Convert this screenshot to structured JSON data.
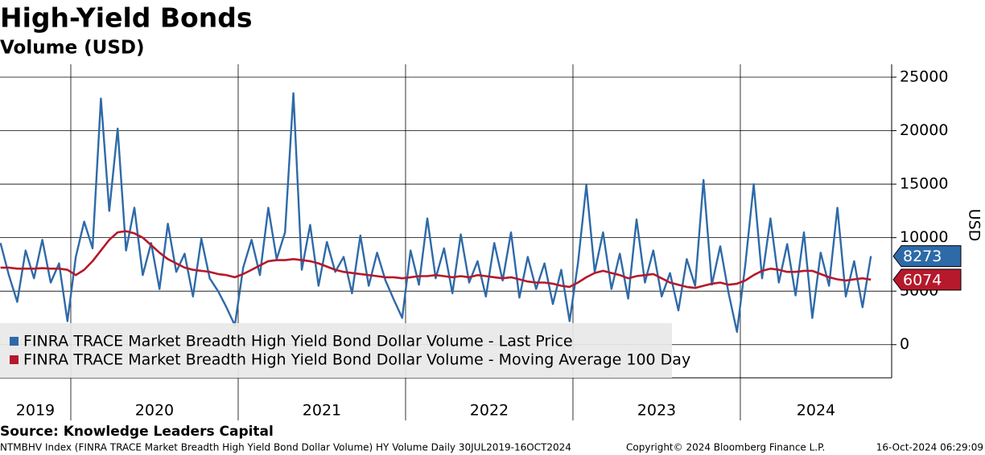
{
  "chart_data": {
    "type": "line",
    "title": "High-Yield Bonds",
    "subtitle": "Volume (USD)",
    "y_label": "USD",
    "source": "Source: Knowledge Leaders Capital",
    "footer_left": "NTMBHV Index (FINRA TRACE Market Breadth High Yield Bond Dollar Volume) HY Volume  Daily 30JUL2019-16OCT2024",
    "footer_center": "Copyright© 2024 Bloomberg Finance L.P.",
    "footer_right": "16-Oct-2024 06:29:09",
    "x": [
      2019.58,
      2019.63,
      2019.68,
      2019.73,
      2019.78,
      2019.83,
      2019.88,
      2019.93,
      2019.98,
      2020.03,
      2020.08,
      2020.13,
      2020.18,
      2020.23,
      2020.28,
      2020.33,
      2020.38,
      2020.43,
      2020.48,
      2020.53,
      2020.58,
      2020.63,
      2020.68,
      2020.73,
      2020.78,
      2020.83,
      2020.88,
      2020.93,
      2020.98,
      2021.03,
      2021.08,
      2021.13,
      2021.18,
      2021.23,
      2021.28,
      2021.33,
      2021.38,
      2021.43,
      2021.48,
      2021.53,
      2021.58,
      2021.63,
      2021.68,
      2021.73,
      2021.78,
      2021.83,
      2021.88,
      2021.93,
      2021.98,
      2022.03,
      2022.08,
      2022.13,
      2022.18,
      2022.23,
      2022.28,
      2022.33,
      2022.38,
      2022.43,
      2022.48,
      2022.53,
      2022.58,
      2022.63,
      2022.68,
      2022.73,
      2022.78,
      2022.83,
      2022.88,
      2022.93,
      2022.98,
      2023.03,
      2023.08,
      2023.13,
      2023.18,
      2023.23,
      2023.28,
      2023.33,
      2023.38,
      2023.43,
      2023.48,
      2023.53,
      2023.58,
      2023.63,
      2023.68,
      2023.73,
      2023.78,
      2023.83,
      2023.88,
      2023.93,
      2023.98,
      2024.03,
      2024.08,
      2024.13,
      2024.18,
      2024.23,
      2024.28,
      2024.33,
      2024.38,
      2024.43,
      2024.48,
      2024.53,
      2024.58,
      2024.63,
      2024.68,
      2024.73,
      2024.78
    ],
    "series": [
      {
        "name": "FINRA TRACE Market Breadth High Yield Bond Dollar Volume - Last Price",
        "color": "#2e6aa8",
        "values": [
          9500,
          6500,
          4000,
          8800,
          6200,
          9800,
          5800,
          7600,
          2200,
          8200,
          11500,
          9000,
          23000,
          12500,
          20200,
          8800,
          12800,
          6500,
          9500,
          5200,
          11300,
          6800,
          8500,
          4500,
          9900,
          6200,
          5000,
          3500,
          1800,
          7200,
          9800,
          6500,
          12800,
          8000,
          10500,
          23500,
          7000,
          11200,
          5500,
          9600,
          6800,
          8200,
          4800,
          10200,
          5500,
          8600,
          6000,
          4200,
          2500,
          8800,
          5600,
          11800,
          6200,
          9000,
          4800,
          10300,
          5800,
          7800,
          4500,
          9500,
          6000,
          10500,
          4400,
          8200,
          5200,
          7600,
          3800,
          7000,
          2200,
          7600,
          14900,
          6800,
          10500,
          5200,
          8500,
          4300,
          11700,
          5800,
          8800,
          4500,
          6700,
          3200,
          8000,
          5500,
          15400,
          5600,
          9200,
          4800,
          1200,
          7500,
          15000,
          6200,
          11800,
          5800,
          9400,
          4600,
          10500,
          2500,
          8600,
          5500,
          12800,
          4500,
          7800,
          3500,
          8273
        ]
      },
      {
        "name": "FINRA TRACE Market Breadth High Yield Bond Dollar Volume - Moving Average 100 Day",
        "color": "#b5192b",
        "values": [
          7200,
          7200,
          7100,
          7100,
          7100,
          7150,
          7100,
          7100,
          7000,
          6500,
          7000,
          7800,
          8800,
          9800,
          10500,
          10600,
          10400,
          10000,
          9300,
          8600,
          8000,
          7600,
          7200,
          7000,
          6900,
          6800,
          6600,
          6500,
          6300,
          6600,
          7000,
          7400,
          7800,
          7900,
          7900,
          8000,
          7900,
          7800,
          7600,
          7300,
          7000,
          6800,
          6700,
          6600,
          6500,
          6400,
          6300,
          6300,
          6200,
          6300,
          6400,
          6400,
          6500,
          6400,
          6300,
          6400,
          6300,
          6500,
          6400,
          6300,
          6200,
          6300,
          6100,
          5900,
          5800,
          5800,
          5700,
          5500,
          5400,
          5800,
          6300,
          6700,
          6900,
          6700,
          6500,
          6200,
          6400,
          6500,
          6600,
          6200,
          5800,
          5600,
          5400,
          5300,
          5500,
          5700,
          5800,
          5600,
          5700,
          6000,
          6500,
          6900,
          7100,
          7000,
          6800,
          6800,
          6900,
          6900,
          6600,
          6300,
          6100,
          6000,
          6100,
          6200,
          6074
        ]
      }
    ],
    "xlim": [
      2019.577,
      2024.904
    ],
    "xticks": [
      2019,
      2020,
      2021,
      2022,
      2023,
      2024
    ],
    "ylim": [
      -3100,
      26200
    ],
    "yticks": [
      0,
      5000,
      10000,
      15000,
      20000,
      25000
    ],
    "grid": true,
    "legend": "lower left"
  }
}
